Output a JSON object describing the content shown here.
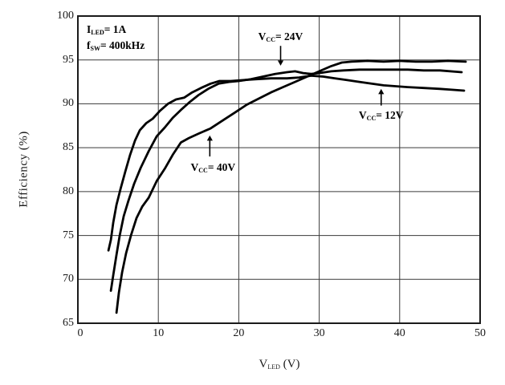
{
  "figure": {
    "background": "#ffffff",
    "ink_color": "#000000",
    "grid_color": "#3a3a3a",
    "border_color": "#1a1a1a"
  },
  "chart_data": {
    "type": "line",
    "title": "",
    "ylabel": "Efficiency (%)",
    "xlabel": {
      "pre": "V",
      "sub": "LED",
      "post": " (V)"
    },
    "xlim": [
      0,
      50
    ],
    "ylim": [
      65,
      100
    ],
    "xticks": [
      0,
      10,
      20,
      30,
      40,
      50
    ],
    "yticks": [
      65,
      70,
      75,
      80,
      85,
      90,
      95,
      100
    ],
    "grid": true,
    "legend_position": "inline-annotations",
    "conditions": [
      {
        "pre": "I",
        "sub": "LED",
        "post": "= 1A"
      },
      {
        "pre": "f",
        "sub": "SW",
        "post": "= 400kHz"
      }
    ],
    "series": [
      {
        "name": "VCC = 12V",
        "vcc": "12V",
        "points": [
          [
            3.8,
            73.3
          ],
          [
            4.1,
            74.5
          ],
          [
            4.4,
            76.5
          ],
          [
            4.8,
            78.5
          ],
          [
            5.3,
            80.3
          ],
          [
            5.9,
            82.3
          ],
          [
            6.5,
            84.2
          ],
          [
            7.1,
            85.8
          ],
          [
            7.7,
            87.0
          ],
          [
            8.5,
            87.8
          ],
          [
            9.3,
            88.3
          ],
          [
            10.2,
            89.2
          ],
          [
            11.2,
            90.0
          ],
          [
            12.2,
            90.5
          ],
          [
            13.2,
            90.7
          ],
          [
            14.2,
            91.3
          ],
          [
            15.3,
            91.8
          ],
          [
            16.5,
            92.3
          ],
          [
            17.6,
            92.6
          ],
          [
            19.0,
            92.6
          ],
          [
            20.5,
            92.7
          ],
          [
            22.0,
            92.8
          ],
          [
            24.0,
            92.9
          ],
          [
            26.0,
            92.9
          ],
          [
            27.5,
            93.0
          ],
          [
            29.0,
            93.2
          ],
          [
            30.5,
            93.1
          ],
          [
            32.0,
            92.9
          ],
          [
            33.5,
            92.7
          ],
          [
            35.0,
            92.5
          ],
          [
            36.5,
            92.3
          ],
          [
            38.0,
            92.1
          ],
          [
            39.5,
            92.0
          ],
          [
            41.0,
            91.9
          ],
          [
            43.0,
            91.8
          ],
          [
            45.0,
            91.7
          ],
          [
            46.5,
            91.6
          ],
          [
            48.0,
            91.5
          ]
        ]
      },
      {
        "name": "VCC = 24V",
        "vcc": "24V",
        "points": [
          [
            4.1,
            68.7
          ],
          [
            4.4,
            70.5
          ],
          [
            4.8,
            72.8
          ],
          [
            5.2,
            75.0
          ],
          [
            5.7,
            77.2
          ],
          [
            6.3,
            79.0
          ],
          [
            7.0,
            80.9
          ],
          [
            7.8,
            82.7
          ],
          [
            8.8,
            84.6
          ],
          [
            9.8,
            86.3
          ],
          [
            10.8,
            87.3
          ],
          [
            11.8,
            88.4
          ],
          [
            12.8,
            89.3
          ],
          [
            13.9,
            90.2
          ],
          [
            15.0,
            91.0
          ],
          [
            16.2,
            91.7
          ],
          [
            17.5,
            92.3
          ],
          [
            18.8,
            92.5
          ],
          [
            20.0,
            92.6
          ],
          [
            21.5,
            92.8
          ],
          [
            23.0,
            93.1
          ],
          [
            24.5,
            93.4
          ],
          [
            26.0,
            93.6
          ],
          [
            27.0,
            93.7
          ],
          [
            28.0,
            93.5
          ],
          [
            29.0,
            93.4
          ],
          [
            30.0,
            93.5
          ],
          [
            31.5,
            93.7
          ],
          [
            33.0,
            93.8
          ],
          [
            35.0,
            93.9
          ],
          [
            37.0,
            93.9
          ],
          [
            39.0,
            93.9
          ],
          [
            41.0,
            93.9
          ],
          [
            43.0,
            93.8
          ],
          [
            45.0,
            93.8
          ],
          [
            47.7,
            93.6
          ]
        ]
      },
      {
        "name": "VCC = 40V",
        "vcc": "40V",
        "points": [
          [
            4.8,
            66.2
          ],
          [
            5.1,
            68.5
          ],
          [
            5.5,
            70.8
          ],
          [
            6.0,
            73.0
          ],
          [
            6.6,
            75.0
          ],
          [
            7.3,
            77.0
          ],
          [
            8.0,
            78.3
          ],
          [
            8.8,
            79.3
          ],
          [
            9.8,
            81.2
          ],
          [
            10.8,
            82.6
          ],
          [
            11.8,
            84.2
          ],
          [
            12.8,
            85.6
          ],
          [
            13.8,
            86.1
          ],
          [
            15.0,
            86.6
          ],
          [
            16.5,
            87.2
          ],
          [
            18.0,
            88.1
          ],
          [
            19.5,
            89.0
          ],
          [
            21.0,
            89.9
          ],
          [
            22.5,
            90.6
          ],
          [
            24.0,
            91.3
          ],
          [
            25.5,
            91.9
          ],
          [
            27.0,
            92.5
          ],
          [
            28.5,
            93.1
          ],
          [
            30.0,
            93.7
          ],
          [
            31.5,
            94.3
          ],
          [
            32.8,
            94.7
          ],
          [
            34.0,
            94.8
          ],
          [
            36.0,
            94.9
          ],
          [
            38.0,
            94.8
          ],
          [
            40.0,
            94.9
          ],
          [
            42.0,
            94.8
          ],
          [
            44.0,
            94.8
          ],
          [
            46.0,
            94.9
          ],
          [
            48.2,
            94.8
          ]
        ]
      }
    ],
    "annotations": [
      {
        "label_pre": "V",
        "label_sub": "CC",
        "label_post": "= 24V",
        "cx": 25.2,
        "cy": 97.6,
        "arrow_x": 25.2,
        "arrow_y1": 96.6,
        "arrow_y2": 94.35,
        "dir": "down"
      },
      {
        "label_pre": "V",
        "label_sub": "CC",
        "label_post": "= 12V",
        "cx": 37.7,
        "cy": 88.7,
        "arrow_x": 37.7,
        "arrow_y1": 89.8,
        "arrow_y2": 91.7,
        "dir": "up"
      },
      {
        "label_pre": "V",
        "label_sub": "CC",
        "label_post": "= 40V",
        "cx": 16.8,
        "cy": 82.7,
        "arrow_x": 16.4,
        "arrow_y1": 84.0,
        "arrow_y2": 86.4,
        "dir": "up"
      }
    ]
  }
}
